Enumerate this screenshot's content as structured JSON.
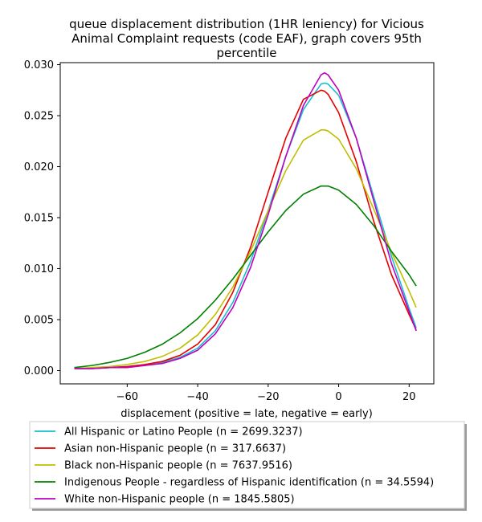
{
  "chart_data": {
    "type": "line",
    "title": [
      "queue displacement distribution (1HR leniency) for Vicious",
      "Animal Complaint  requests (code EAF), graph covers 95th",
      "percentile"
    ],
    "xlabel": "displacement (positive = late, negative = early)",
    "ylabel": "",
    "xlim": [
      -79,
      27
    ],
    "ylim": [
      -0.0013,
      0.0302
    ],
    "x_ticks": [
      -60,
      -40,
      -20,
      0,
      20
    ],
    "y_ticks": [
      0.0,
      0.005,
      0.01,
      0.015,
      0.02,
      0.025,
      0.03
    ],
    "y_tick_labels": [
      "0.000",
      "0.005",
      "0.010",
      "0.015",
      "0.020",
      "0.025",
      "0.030"
    ],
    "x_tick_labels": [
      "−60",
      "−40",
      "−20",
      "0",
      "20"
    ],
    "legend_placement": "bottom-center",
    "grid": false,
    "x": [
      -75,
      -70,
      -65,
      -60,
      -55,
      -50,
      -45,
      -40,
      -35,
      -30,
      -25,
      -20,
      -15,
      -10,
      -5,
      -4,
      -3,
      0,
      5,
      10,
      15,
      20,
      22
    ],
    "series": [
      {
        "name": "All Hispanic or Latino People (n = 2699.3237)",
        "color": "#17becf",
        "values": [
          0.0002,
          0.0002,
          0.0003,
          0.0004,
          0.0005,
          0.0008,
          0.0013,
          0.0022,
          0.0039,
          0.0067,
          0.0107,
          0.0157,
          0.021,
          0.0256,
          0.0281,
          0.0282,
          0.0281,
          0.027,
          0.0228,
          0.017,
          0.0112,
          0.0061,
          0.0042
        ]
      },
      {
        "name": "Asian non-Hispanic people (n = 317.6637)",
        "color": "#e60000",
        "values": [
          0.0002,
          0.0002,
          0.0003,
          0.0004,
          0.0006,
          0.0009,
          0.0015,
          0.0026,
          0.0045,
          0.0077,
          0.0121,
          0.0175,
          0.0228,
          0.0266,
          0.0275,
          0.0274,
          0.0271,
          0.0253,
          0.0205,
          0.0146,
          0.0094,
          0.0055,
          0.004
        ]
      },
      {
        "name": "Black non-Hispanic people (n = 7637.9516)",
        "color": "#bfbf00",
        "values": [
          0.0002,
          0.0003,
          0.0004,
          0.0006,
          0.0009,
          0.0014,
          0.0022,
          0.0035,
          0.0055,
          0.0082,
          0.0117,
          0.0157,
          0.0196,
          0.0226,
          0.0236,
          0.0236,
          0.0235,
          0.0227,
          0.0198,
          0.0158,
          0.0116,
          0.0078,
          0.0062
        ]
      },
      {
        "name": "Indigenous People - regardless of Hispanic identification (n = 34.5594)",
        "color": "#008000",
        "values": [
          0.0003,
          0.0005,
          0.0008,
          0.0012,
          0.0018,
          0.0026,
          0.0037,
          0.0051,
          0.0069,
          0.009,
          0.0113,
          0.0136,
          0.0157,
          0.0173,
          0.0181,
          0.0181,
          0.0181,
          0.0177,
          0.0163,
          0.0142,
          0.0117,
          0.0094,
          0.0083
        ]
      },
      {
        "name": "White non-Hispanic people (n = 1845.5805)",
        "color": "#bf00bf",
        "values": [
          0.0002,
          0.0002,
          0.0003,
          0.0003,
          0.0005,
          0.0007,
          0.0012,
          0.002,
          0.0036,
          0.0062,
          0.0101,
          0.0153,
          0.021,
          0.026,
          0.029,
          0.0292,
          0.029,
          0.0275,
          0.0228,
          0.0166,
          0.0105,
          0.0058,
          0.0039
        ]
      }
    ]
  }
}
